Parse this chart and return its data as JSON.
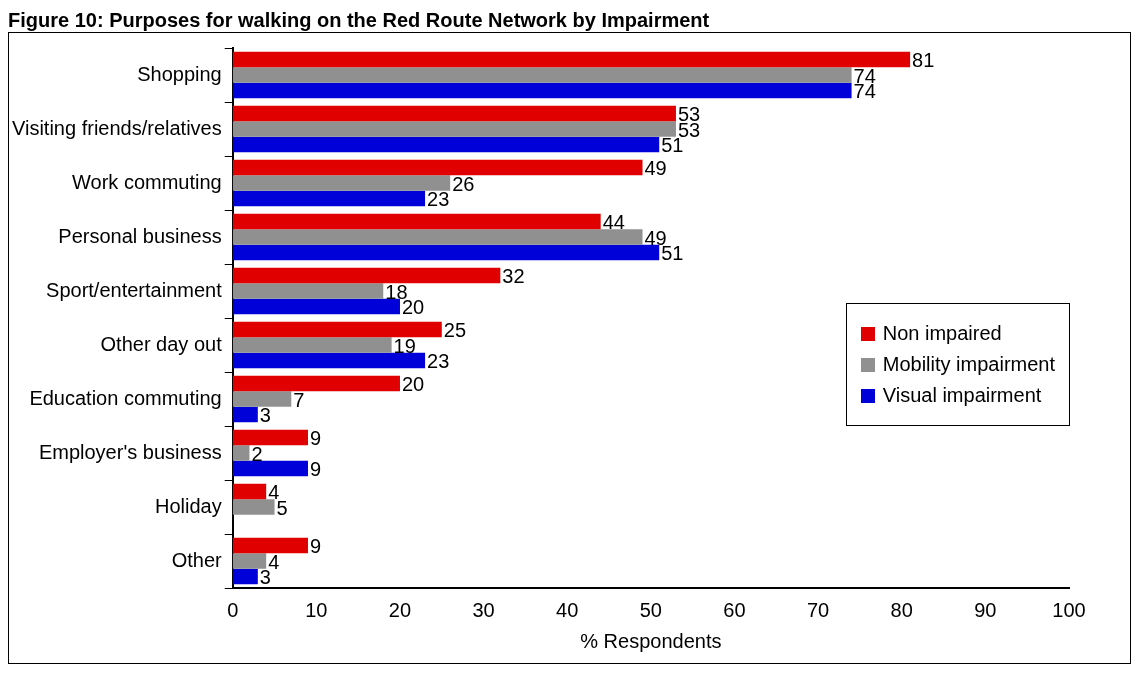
{
  "chart_data": {
    "type": "bar",
    "orientation": "horizontal",
    "title": "Figure 10: Purposes for walking on the Red Route Network by Impairment",
    "xlabel": "% Respondents",
    "categories": [
      "Shopping",
      "Visiting friends/relatives",
      "Work commuting",
      "Personal business",
      "Sport/entertainment",
      "Other day out",
      "Education commuting",
      "Employer's business",
      "Holiday",
      "Other"
    ],
    "series": [
      {
        "name": "Non impaired",
        "color": "#e00000",
        "values": [
          81,
          53,
          49,
          44,
          32,
          25,
          20,
          9,
          4,
          9
        ]
      },
      {
        "name": "Mobility impairment",
        "color": "#909090",
        "values": [
          74,
          53,
          26,
          49,
          18,
          19,
          7,
          2,
          5,
          4
        ]
      },
      {
        "name": "Visual impairment",
        "color": "#0000d8",
        "values": [
          74,
          51,
          23,
          51,
          20,
          23,
          3,
          9,
          null,
          3
        ]
      }
    ],
    "xlim": [
      0,
      100
    ],
    "xticks": [
      0,
      10,
      20,
      30,
      40,
      50,
      60,
      70,
      80,
      90,
      100
    ],
    "grid": false,
    "legend": "right",
    "data_labels": true
  }
}
